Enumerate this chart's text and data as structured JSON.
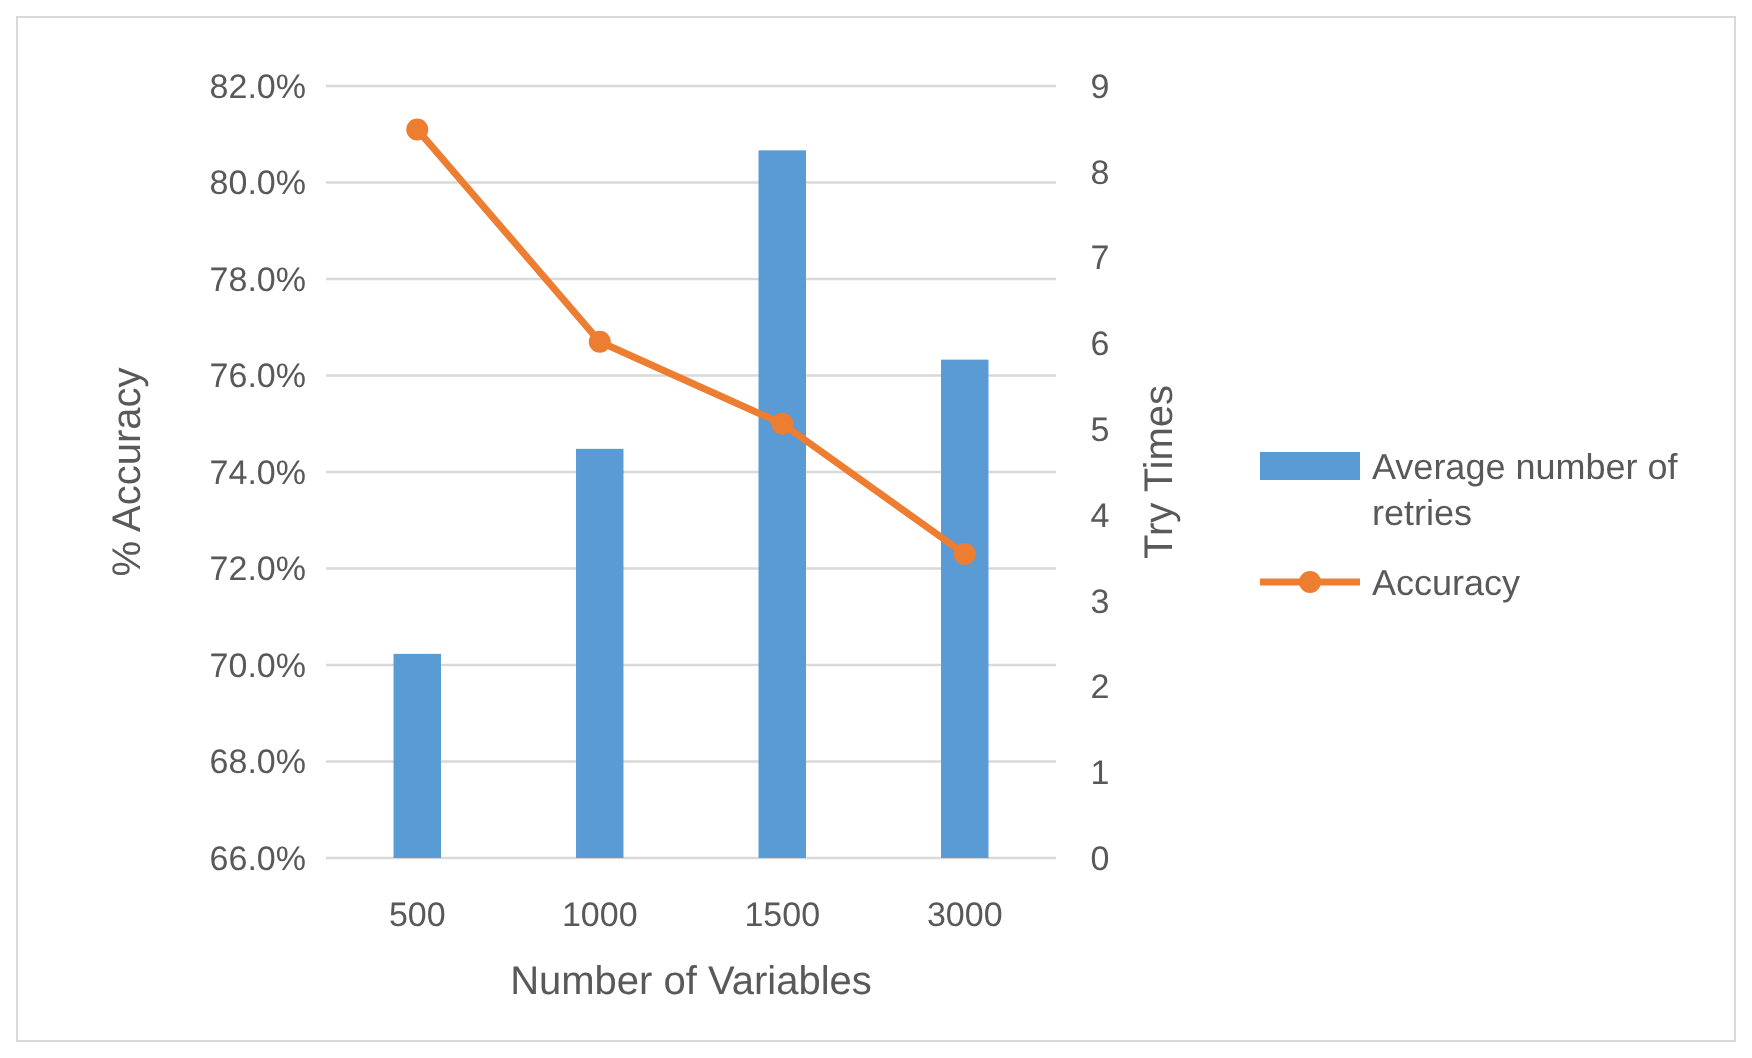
{
  "chart_data": {
    "type": "bar",
    "xlabel": "Number of Variables",
    "ylabel": "% Accuracy",
    "y2label": "Try Times",
    "categories": [
      "500",
      "1000",
      "1500",
      "3000"
    ],
    "series": [
      {
        "name": "Average number of retries",
        "axis": "y2",
        "color": "#5b9bd5",
        "values": [
          2.38,
          4.77,
          8.25,
          5.81
        ]
      },
      {
        "name": "Accuracy",
        "type": "line",
        "axis": "y",
        "color": "#ed7d31",
        "marker": "circle",
        "values": [
          81.1,
          76.7,
          75.0,
          72.3
        ]
      }
    ],
    "ylim": [
      66,
      82
    ],
    "yticks": [
      {
        "value": 66,
        "label": "66.0%"
      },
      {
        "value": 68,
        "label": "68.0%"
      },
      {
        "value": 70,
        "label": "70.0%"
      },
      {
        "value": 72,
        "label": "72.0%"
      },
      {
        "value": 74,
        "label": "74.0%"
      },
      {
        "value": 76,
        "label": "76.0%"
      },
      {
        "value": 78,
        "label": "78.0%"
      },
      {
        "value": 80,
        "label": "80.0%"
      },
      {
        "value": 82,
        "label": "82.0%"
      }
    ],
    "y2lim": [
      0,
      9
    ],
    "y2ticks": [
      0,
      1,
      2,
      3,
      4,
      5,
      6,
      7,
      8,
      9
    ],
    "grid": "y",
    "legend": "right"
  }
}
